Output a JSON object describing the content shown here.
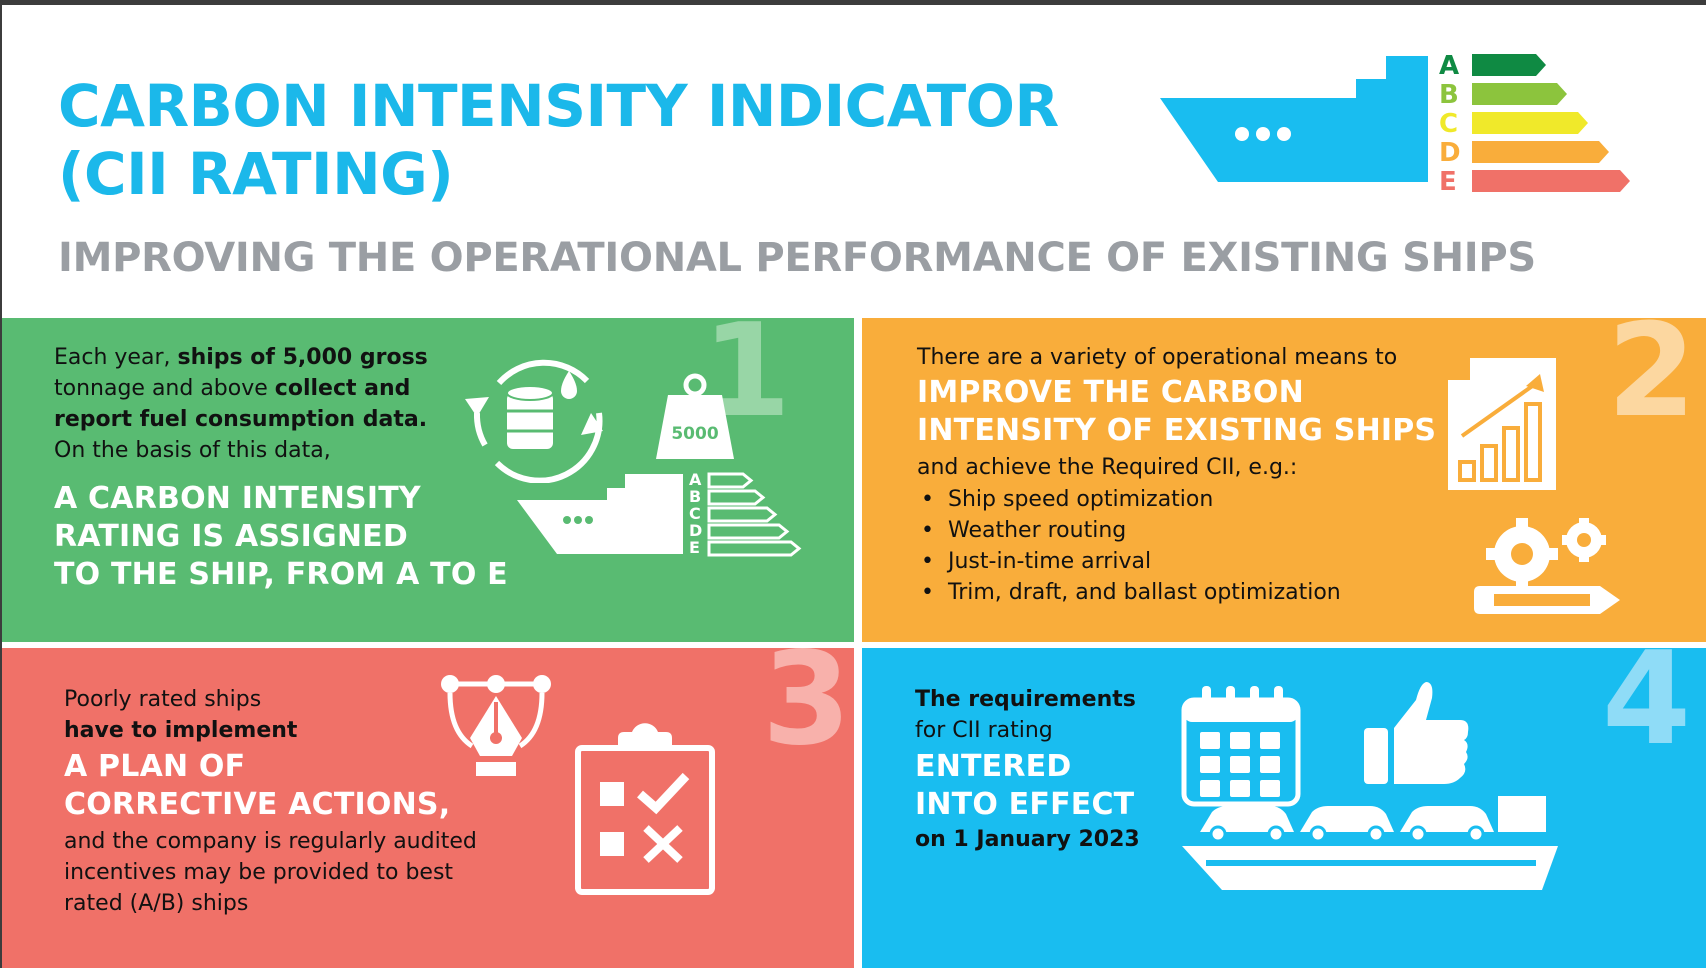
{
  "header": {
    "title_line1": "CARBON INTENSITY INDICATOR",
    "title_line2": "(CII RATING)",
    "subtitle": "IMPROVING THE OPERATIONAL PERFORMANCE OF EXISTING SHIPS"
  },
  "ratings": [
    "A",
    "B",
    "C",
    "D",
    "E"
  ],
  "rating_colors": [
    "#0f8a43",
    "#8cc43d",
    "#f0e92a",
    "#f9ad3b",
    "#f07168"
  ],
  "colors": {
    "title": "#1bb8ea",
    "subtitle": "#9a9ea3",
    "green_panel": "#59bb72",
    "orange_panel": "#f9ad3b",
    "red_panel": "#f07168",
    "blue_panel": "#19bdf0"
  },
  "panel1": {
    "number": "1",
    "line1_pre": "Each year, ",
    "line1_bold": "ships of 5,000 gross",
    "line2_pre": "tonnage and above ",
    "line2_bold": "collect and",
    "line3_bold": "report fuel consumption data.",
    "line4": "On the basis of this data,",
    "highlight": [
      "A CARBON INTENSITY",
      "RATING IS ASSIGNED",
      "TO THE SHIP, FROM A TO E"
    ],
    "weight_label": "5000"
  },
  "panel2": {
    "number": "2",
    "intro": "There are a variety of operational means to",
    "highlight": [
      "IMPROVE THE CARBON",
      "INTENSITY OF EXISTING SHIPS"
    ],
    "after": "and achieve the Required CII, e.g.:",
    "bullets": [
      "Ship speed optimization",
      "Weather routing",
      "Just-in-time arrival",
      "Trim, draft, and ballast optimization"
    ]
  },
  "panel3": {
    "number": "3",
    "line1": "Poorly rated ships",
    "line2_bold": "have to implement",
    "highlight": [
      "A PLAN OF",
      "CORRECTIVE ACTIONS,"
    ],
    "after": [
      "and the company is regularly audited",
      "incentives may be provided to best",
      "rated (A/B) ships"
    ]
  },
  "panel4": {
    "number": "4",
    "line1_bold": "The requirements",
    "line2": "for CII rating",
    "highlight": [
      "ENTERED",
      "INTO EFFECT"
    ],
    "date": "on 1 January 2023"
  }
}
